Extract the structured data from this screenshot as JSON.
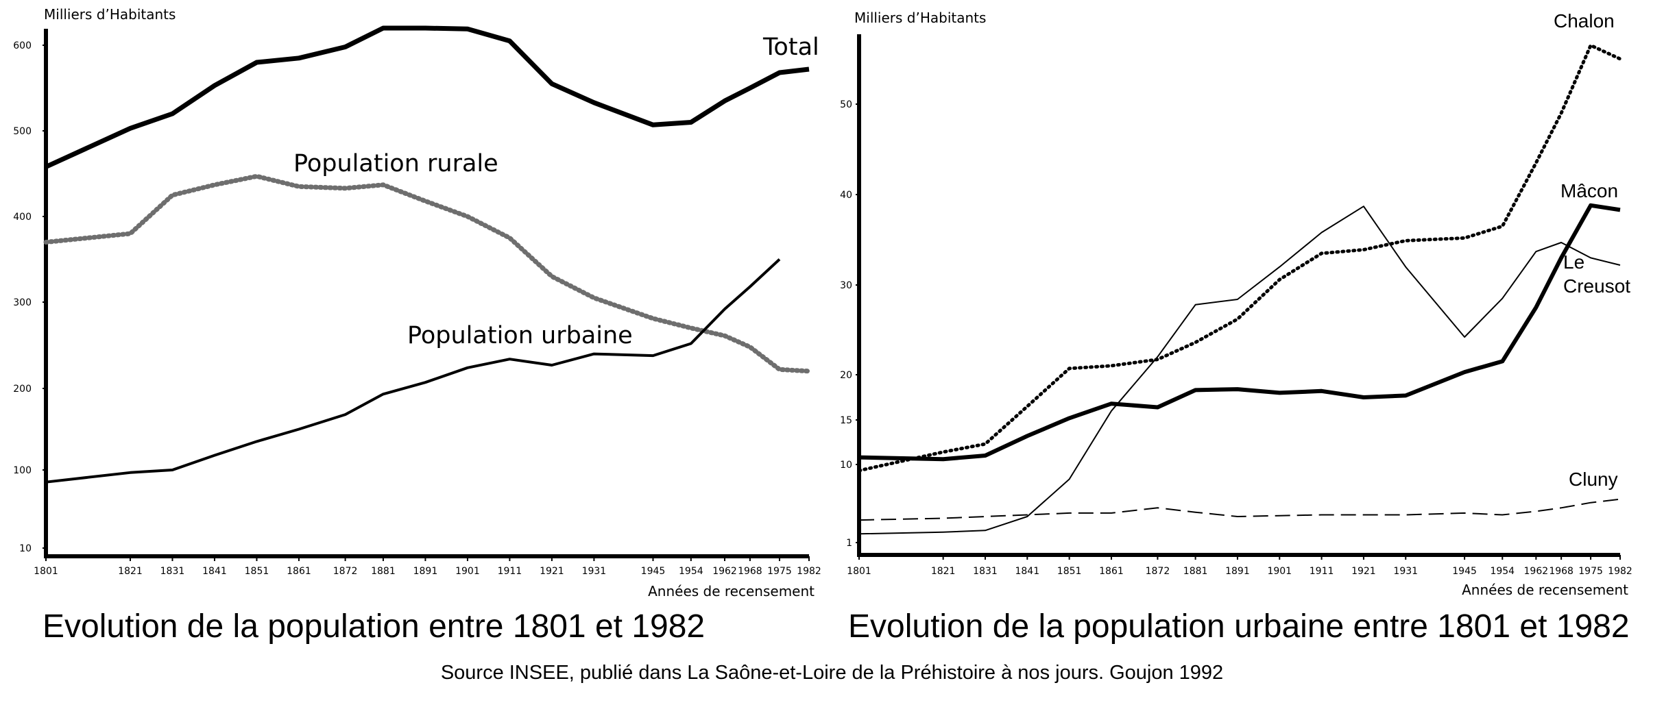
{
  "chart_data": [
    {
      "type": "line",
      "caption": "Evolution de la population entre 1801 et 1982",
      "ylabel": "Milliers d’Habitants",
      "xlabel": "Années de recensement",
      "x_ticks": [
        1801,
        1821,
        1831,
        1841,
        1851,
        1861,
        1872,
        1881,
        1891,
        1901,
        1911,
        1921,
        1931,
        1945,
        1954,
        1962,
        1968,
        1975,
        1982
      ],
      "y_ticks": [
        10,
        100,
        200,
        300,
        400,
        500,
        600
      ],
      "xlim": [
        1801,
        1982
      ],
      "ylim": [
        0,
        640
      ],
      "grid": false,
      "series": [
        {
          "name": "Total",
          "style": "solid-bold",
          "points": [
            [
              1801,
              458
            ],
            [
              1821,
              503
            ],
            [
              1831,
              520
            ],
            [
              1841,
              553
            ],
            [
              1851,
              580
            ],
            [
              1861,
              585
            ],
            [
              1872,
              598
            ],
            [
              1881,
              620
            ],
            [
              1891,
              620
            ],
            [
              1901,
              619
            ],
            [
              1911,
              605
            ],
            [
              1921,
              555
            ],
            [
              1931,
              533
            ],
            [
              1945,
              507
            ],
            [
              1954,
              510
            ],
            [
              1962,
              535
            ],
            [
              1968,
              550
            ],
            [
              1975,
              568
            ],
            [
              1982,
              572
            ]
          ]
        },
        {
          "name": "Population rurale",
          "style": "dotted",
          "points": [
            [
              1801,
              370
            ],
            [
              1821,
              380
            ],
            [
              1831,
              425
            ],
            [
              1841,
              437
            ],
            [
              1851,
              447
            ],
            [
              1861,
              435
            ],
            [
              1872,
              433
            ],
            [
              1881,
              437
            ],
            [
              1891,
              418
            ],
            [
              1901,
              400
            ],
            [
              1911,
              375
            ],
            [
              1921,
              330
            ],
            [
              1931,
              305
            ],
            [
              1945,
              281
            ],
            [
              1954,
              270
            ],
            [
              1962,
              261
            ],
            [
              1968,
              248
            ],
            [
              1975,
              222
            ],
            [
              1982,
              220
            ]
          ]
        },
        {
          "name": "Population urbaine",
          "style": "solid",
          "points": [
            [
              1801,
              86
            ],
            [
              1821,
              97
            ],
            [
              1831,
              100
            ],
            [
              1841,
              118
            ],
            [
              1851,
              135
            ],
            [
              1861,
              150
            ],
            [
              1872,
              168
            ],
            [
              1881,
              193
            ],
            [
              1891,
              207
            ],
            [
              1901,
              224
            ],
            [
              1911,
              234
            ],
            [
              1921,
              227
            ],
            [
              1931,
              240
            ],
            [
              1945,
              238
            ],
            [
              1954,
              252
            ],
            [
              1962,
              292
            ],
            [
              1968,
              318
            ],
            [
              1975,
              350
            ]
          ]
        }
      ]
    },
    {
      "type": "line",
      "caption": "Evolution de la population urbaine entre 1801 et 1982",
      "ylabel": "Milliers d’Habitants",
      "xlabel": "Années de recensement",
      "x_ticks": [
        1801,
        1821,
        1831,
        1841,
        1851,
        1861,
        1872,
        1881,
        1891,
        1901,
        1911,
        1921,
        1931,
        1945,
        1954,
        1962,
        1968,
        1975,
        1982
      ],
      "y_ticks": [
        1,
        10,
        15,
        20,
        30,
        40,
        50
      ],
      "xlim": [
        1801,
        1982
      ],
      "ylim": [
        0,
        58
      ],
      "grid": false,
      "series": [
        {
          "name": "Chalon",
          "style": "dotted",
          "points": [
            [
              1801,
              9.3
            ],
            [
              1821,
              11.4
            ],
            [
              1831,
              12.3
            ],
            [
              1841,
              16.5
            ],
            [
              1851,
              20.7
            ],
            [
              1861,
              21.0
            ],
            [
              1872,
              21.7
            ],
            [
              1881,
              23.6
            ],
            [
              1891,
              26.2
            ],
            [
              1901,
              30.6
            ],
            [
              1911,
              33.5
            ],
            [
              1921,
              33.9
            ],
            [
              1931,
              34.9
            ],
            [
              1945,
              35.2
            ],
            [
              1954,
              36.5
            ],
            [
              1962,
              43.5
            ],
            [
              1968,
              49.0
            ],
            [
              1975,
              56.5
            ],
            [
              1982,
              55.0
            ]
          ]
        },
        {
          "name": "Mâcon",
          "style": "solid-bold",
          "points": [
            [
              1801,
              10.8
            ],
            [
              1821,
              10.6
            ],
            [
              1831,
              11.0
            ],
            [
              1841,
              13.2
            ],
            [
              1851,
              15.2
            ],
            [
              1861,
              16.8
            ],
            [
              1872,
              16.4
            ],
            [
              1881,
              18.3
            ],
            [
              1891,
              18.4
            ],
            [
              1901,
              18.0
            ],
            [
              1911,
              18.2
            ],
            [
              1921,
              17.5
            ],
            [
              1931,
              17.7
            ],
            [
              1945,
              20.3
            ],
            [
              1954,
              21.5
            ],
            [
              1962,
              27.5
            ],
            [
              1968,
              33.0
            ],
            [
              1975,
              38.8
            ],
            [
              1982,
              38.3
            ]
          ]
        },
        {
          "name": "Le Creusot",
          "style": "solid-thin",
          "points": [
            [
              1801,
              2.0
            ],
            [
              1821,
              2.2
            ],
            [
              1831,
              2.4
            ],
            [
              1841,
              4.0
            ],
            [
              1851,
              8.3
            ],
            [
              1861,
              16.0
            ],
            [
              1872,
              22.0
            ],
            [
              1881,
              27.8
            ],
            [
              1891,
              28.4
            ],
            [
              1901,
              32.0
            ],
            [
              1911,
              35.8
            ],
            [
              1921,
              38.7
            ],
            [
              1931,
              32.0
            ],
            [
              1945,
              24.2
            ],
            [
              1954,
              28.5
            ],
            [
              1962,
              33.7
            ],
            [
              1968,
              34.7
            ],
            [
              1975,
              33.0
            ],
            [
              1982,
              32.2
            ]
          ]
        },
        {
          "name": "Cluny",
          "style": "dashed",
          "points": [
            [
              1801,
              3.6
            ],
            [
              1821,
              3.8
            ],
            [
              1831,
              4.0
            ],
            [
              1841,
              4.2
            ],
            [
              1851,
              4.4
            ],
            [
              1861,
              4.4
            ],
            [
              1872,
              5.0
            ],
            [
              1881,
              4.5
            ],
            [
              1891,
              4.0
            ],
            [
              1901,
              4.1
            ],
            [
              1911,
              4.2
            ],
            [
              1921,
              4.2
            ],
            [
              1931,
              4.2
            ],
            [
              1945,
              4.4
            ],
            [
              1954,
              4.2
            ],
            [
              1962,
              4.6
            ],
            [
              1968,
              5.0
            ],
            [
              1975,
              5.6
            ],
            [
              1982,
              6.0
            ]
          ]
        }
      ]
    }
  ],
  "source": "Source INSEE, publié dans La Saône-et-Loire de la Préhistoire à nos jours. Goujon 1992"
}
